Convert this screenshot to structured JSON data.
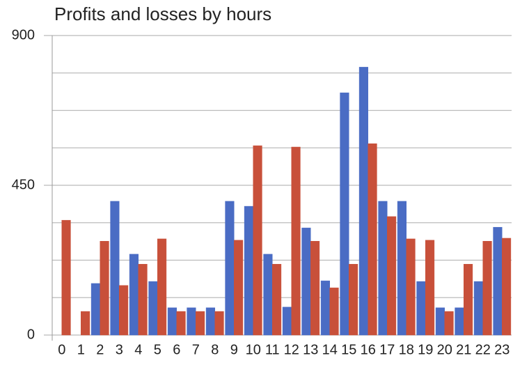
{
  "chart_data": {
    "type": "bar",
    "title": "Profits and losses by hours",
    "categories": [
      "0",
      "1",
      "2",
      "3",
      "4",
      "5",
      "6",
      "7",
      "8",
      "9",
      "10",
      "11",
      "12",
      "13",
      "14",
      "15",
      "16",
      "17",
      "18",
      "19",
      "20",
      "21",
      "22",
      "23"
    ],
    "series": [
      {
        "color": "#4a6cc4",
        "values": [
          0,
          0,
          155,
          402,
          243,
          161,
          82,
          82,
          82,
          402,
          387,
          243,
          84,
          322,
          163,
          728,
          805,
          402,
          402,
          161,
          82,
          82,
          161,
          324
        ]
      },
      {
        "color": "#c8503a",
        "values": [
          345,
          71,
          282,
          149,
          213,
          289,
          71,
          71,
          71,
          285,
          569,
          213,
          565,
          282,
          142,
          213,
          575,
          356,
          289,
          285,
          71,
          213,
          282,
          291
        ]
      }
    ],
    "ylim": [
      0,
      900
    ],
    "yticks": [
      0,
      450,
      900
    ],
    "ygrid": [
      112.5,
      225,
      337.5,
      562.5,
      675,
      787.5
    ],
    "grid": true
  }
}
